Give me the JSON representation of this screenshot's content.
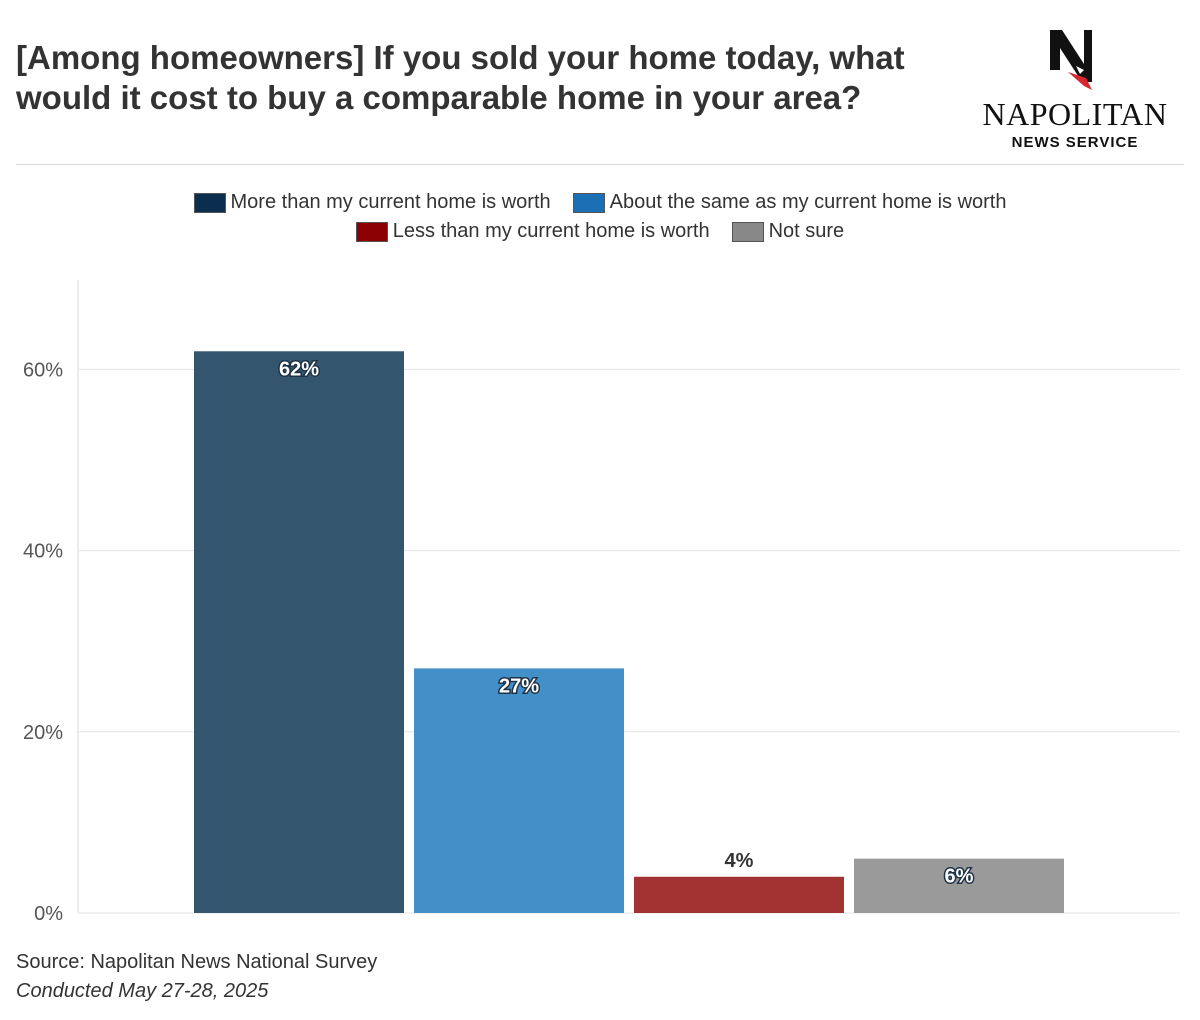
{
  "header": {
    "title": "[Among homeowners] If you sold your home today, what would it cost to buy a comparable home in your area?"
  },
  "logo": {
    "icon": "napolitan-eagle-n-logo",
    "name": "NAPOLITAN",
    "subtitle": "NEWS SERVICE"
  },
  "footer": {
    "source": "Source: Napolitan News National Survey",
    "conducted": "Conducted May 27-28, 2025"
  },
  "chart_data": {
    "type": "bar",
    "title": "[Among homeowners] If you sold your home today, what would it cost to buy a comparable home in your area?",
    "xlabel": "",
    "ylabel": "",
    "ylim": [
      0,
      70
    ],
    "yticks": [
      0,
      20,
      40,
      60
    ],
    "ytick_labels": [
      "0%",
      "20%",
      "40%",
      "60%"
    ],
    "grid": true,
    "legend_position": "top-center",
    "series": [
      {
        "name": "More than my current home is worth",
        "value": 62,
        "label": "62%",
        "color": "#0b2d4e",
        "bar_color": "#34556e",
        "label_inside": true
      },
      {
        "name": "About the same as my current home is worth",
        "value": 27,
        "label": "27%",
        "color": "#1a6fb5",
        "bar_color": "#438fc8",
        "label_inside": true
      },
      {
        "name": "Less than my current home is worth",
        "value": 4,
        "label": "4%",
        "color": "#8b0000",
        "bar_color": "#a33232",
        "label_inside": false
      },
      {
        "name": "Not sure",
        "value": 6,
        "label": "6%",
        "color": "#888888",
        "bar_color": "#9a9a9a",
        "label_inside": true
      }
    ]
  }
}
